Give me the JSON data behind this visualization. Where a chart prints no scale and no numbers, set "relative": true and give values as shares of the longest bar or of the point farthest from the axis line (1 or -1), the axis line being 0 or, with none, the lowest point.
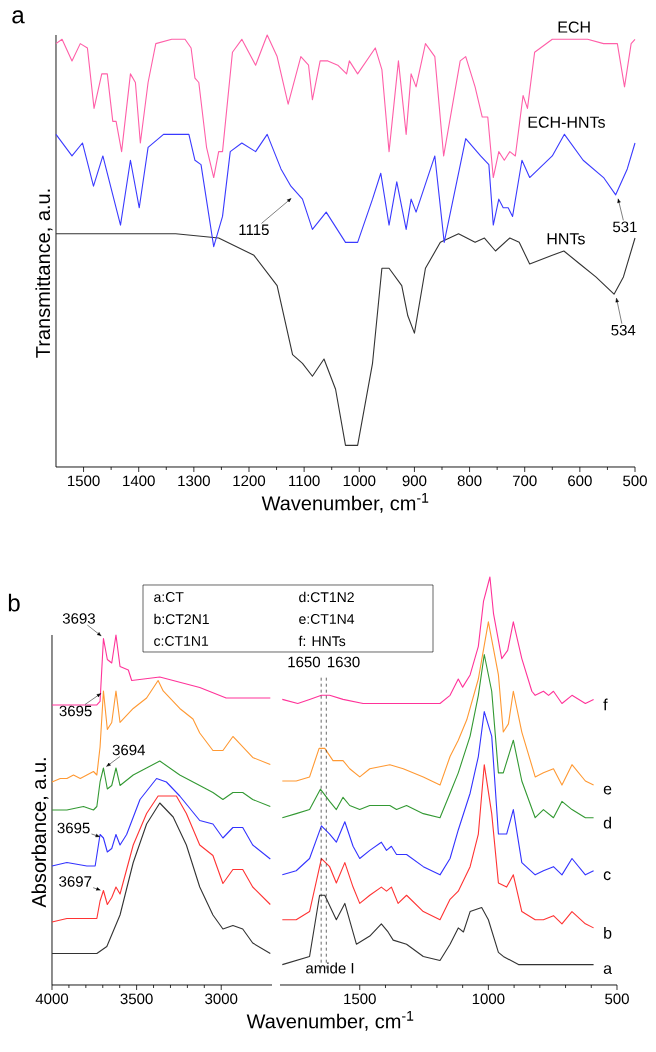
{
  "chart_data": [
    {
      "type": "line",
      "title": "a",
      "xlabel": "Wavenumber, cm$^{-1}$",
      "ylabel": "Transmittance, a.u.",
      "relative": true,
      "xlim": [
        1550,
        500
      ],
      "xticks": [
        1500,
        1400,
        1300,
        1200,
        1100,
        1000,
        900,
        800,
        700,
        600,
        500
      ],
      "series": [
        {
          "name": "ECH",
          "color": "#ff5fa8",
          "x": [
            1550,
            1539,
            1521,
            1506,
            1493,
            1481,
            1467,
            1457,
            1447,
            1441,
            1431,
            1415,
            1406,
            1397,
            1383,
            1369,
            1340,
            1316,
            1305,
            1298,
            1291,
            1277,
            1264,
            1255,
            1248,
            1230,
            1213,
            1188,
            1167,
            1149,
            1129,
            1106,
            1092,
            1085,
            1071,
            1057,
            1039,
            1023,
            1018,
            1003,
            971,
            959,
            946,
            929,
            915,
            906,
            897,
            880,
            863,
            847,
            817,
            807,
            790,
            777,
            767,
            757,
            747,
            737,
            727,
            717,
            703,
            695,
            682,
            650,
            614,
            586,
            557,
            532,
            519,
            507,
            500
          ],
          "values": [
            0.98,
            0.99,
            0.94,
            0.98,
            0.97,
            0.83,
            0.91,
            0.91,
            0.8,
            0.8,
            0.73,
            0.91,
            0.89,
            0.75,
            0.89,
            0.98,
            0.99,
            0.99,
            0.97,
            0.9,
            0.89,
            0.74,
            0.67,
            0.73,
            0.73,
            0.96,
            0.99,
            0.93,
            1.0,
            0.95,
            0.84,
            0.95,
            0.93,
            0.85,
            0.94,
            0.94,
            0.93,
            0.91,
            0.94,
            0.91,
            0.97,
            0.92,
            0.73,
            0.94,
            0.77,
            0.91,
            0.88,
            0.98,
            0.95,
            0.72,
            0.94,
            0.95,
            0.88,
            0.81,
            0.81,
            0.67,
            0.73,
            0.71,
            0.73,
            0.72,
            0.86,
            0.83,
            0.96,
            0.99,
            0.99,
            0.99,
            0.98,
            0.98,
            0.88,
            0.98,
            0.99
          ]
        },
        {
          "name": "ECH-HNTs",
          "color": "#3a3aff",
          "x": [
            1550,
            1521,
            1502,
            1482,
            1465,
            1447,
            1433,
            1415,
            1399,
            1383,
            1355,
            1309,
            1298,
            1287,
            1264,
            1248,
            1234,
            1213,
            1188,
            1167,
            1142,
            1124,
            1103,
            1085,
            1060,
            1025,
            1003,
            976,
            961,
            946,
            932,
            915,
            906,
            897,
            863,
            846,
            807,
            780,
            765,
            757,
            747,
            739,
            730,
            722,
            705,
            691,
            650,
            628,
            594,
            557,
            535,
            514,
            500
          ],
          "values": [
            0.77,
            0.72,
            0.75,
            0.65,
            0.72,
            0.63,
            0.56,
            0.71,
            0.6,
            0.74,
            0.77,
            0.77,
            0.71,
            0.7,
            0.51,
            0.58,
            0.73,
            0.75,
            0.73,
            0.77,
            0.69,
            0.65,
            0.62,
            0.55,
            0.59,
            0.52,
            0.52,
            0.62,
            0.68,
            0.56,
            0.66,
            0.55,
            0.62,
            0.59,
            0.72,
            0.52,
            0.76,
            0.72,
            0.7,
            0.56,
            0.62,
            0.6,
            0.6,
            0.58,
            0.71,
            0.67,
            0.72,
            0.77,
            0.71,
            0.67,
            0.63,
            0.69,
            0.75
          ]
        },
        {
          "name": "HNTs",
          "color": "#333333",
          "x": [
            1550,
            1440,
            1333,
            1255,
            1191,
            1149,
            1121,
            1103,
            1085,
            1064,
            1043,
            1025,
            1003,
            976,
            959,
            946,
            923,
            912,
            900,
            880,
            853,
            820,
            790,
            773,
            753,
            727,
            710,
            691,
            650,
            629,
            600,
            571,
            538,
            521,
            500
          ],
          "values": [
            0.54,
            0.54,
            0.54,
            0.53,
            0.49,
            0.42,
            0.26,
            0.24,
            0.21,
            0.25,
            0.18,
            0.05,
            0.05,
            0.24,
            0.46,
            0.46,
            0.42,
            0.35,
            0.31,
            0.46,
            0.52,
            0.54,
            0.52,
            0.53,
            0.5,
            0.53,
            0.52,
            0.47,
            0.49,
            0.5,
            0.47,
            0.44,
            0.4,
            0.44,
            0.53
          ]
        }
      ],
      "annotations": [
        {
          "text": "1115",
          "x": 1115,
          "y": 0.63
        },
        {
          "text": "531",
          "x": 531,
          "y": 0.63
        },
        {
          "text": "534",
          "x": 534,
          "y": 0.4
        }
      ]
    },
    {
      "type": "line",
      "title": "b",
      "ylabel": "Absorbance, a.u.",
      "relative": true,
      "xlim": [
        4000,
        2700
      ],
      "xticks": [
        4000,
        3500,
        3000
      ],
      "series": [
        {
          "color": "#ff3399",
          "x": [
            4000,
            3735,
            3716,
            3696,
            3673,
            3647,
            3622,
            3598,
            3549,
            3529,
            3363,
            3127,
            2971,
            2931,
            2873,
            2710
          ],
          "values": [
            0.8,
            0.8,
            0.81,
            0.99,
            0.93,
            0.92,
            1.0,
            0.91,
            0.9,
            0.87,
            0.88,
            0.85,
            0.82,
            0.82,
            0.82,
            0.82
          ]
        },
        {
          "color": "#ff9933",
          "x": [
            4000,
            3951,
            3912,
            3873,
            3833,
            3794,
            3755,
            3735,
            3716,
            3696,
            3673,
            3647,
            3622,
            3598,
            3520,
            3441,
            3373,
            3343,
            3245,
            3167,
            3127,
            3049,
            2990,
            2931,
            2892,
            2814,
            2710
          ],
          "values": [
            0.58,
            0.59,
            0.59,
            0.6,
            0.59,
            0.6,
            0.61,
            0.6,
            0.68,
            0.84,
            0.73,
            0.75,
            0.84,
            0.75,
            0.79,
            0.82,
            0.87,
            0.84,
            0.79,
            0.76,
            0.72,
            0.67,
            0.67,
            0.71,
            0.69,
            0.65,
            0.63
          ]
        },
        {
          "color": "#339933",
          "x": [
            4000,
            3912,
            3814,
            3755,
            3735,
            3716,
            3696,
            3673,
            3647,
            3622,
            3598,
            3520,
            3363,
            3245,
            3127,
            3049,
            2990,
            2931,
            2873,
            2814,
            2710
          ],
          "values": [
            0.5,
            0.5,
            0.51,
            0.5,
            0.51,
            0.58,
            0.62,
            0.56,
            0.57,
            0.62,
            0.57,
            0.6,
            0.64,
            0.6,
            0.57,
            0.55,
            0.53,
            0.55,
            0.55,
            0.53,
            0.51
          ]
        },
        {
          "color": "#3333ff",
          "x": [
            4000,
            3912,
            3794,
            3745,
            3716,
            3696,
            3673,
            3647,
            3622,
            3598,
            3559,
            3480,
            3382,
            3324,
            3245,
            3127,
            3049,
            2990,
            2931,
            2873,
            2814,
            2710
          ],
          "values": [
            0.34,
            0.35,
            0.34,
            0.34,
            0.43,
            0.42,
            0.38,
            0.39,
            0.43,
            0.4,
            0.43,
            0.53,
            0.59,
            0.58,
            0.54,
            0.47,
            0.46,
            0.42,
            0.45,
            0.45,
            0.4,
            0.36
          ]
        },
        {
          "color": "#ff3333",
          "x": [
            4000,
            3912,
            3794,
            3735,
            3716,
            3696,
            3673,
            3647,
            3622,
            3598,
            3520,
            3441,
            3373,
            3324,
            3265,
            3206,
            3127,
            3049,
            2990,
            2931,
            2873,
            2814,
            2710
          ],
          "values": [
            0.18,
            0.19,
            0.19,
            0.19,
            0.24,
            0.27,
            0.23,
            0.25,
            0.28,
            0.26,
            0.4,
            0.49,
            0.54,
            0.54,
            0.54,
            0.49,
            0.4,
            0.37,
            0.29,
            0.33,
            0.33,
            0.28,
            0.23
          ]
        },
        {
          "color": "#333333",
          "x": [
            4000,
            3735,
            3676,
            3598,
            3520,
            3441,
            3363,
            3284,
            3206,
            3127,
            3049,
            2990,
            2931,
            2873,
            2814,
            2710
          ],
          "values": [
            0.09,
            0.09,
            0.11,
            0.2,
            0.35,
            0.46,
            0.52,
            0.48,
            0.4,
            0.28,
            0.2,
            0.16,
            0.17,
            0.16,
            0.12,
            0.09
          ]
        }
      ],
      "annotations": [
        {
          "text": "3693",
          "x": 3693,
          "y": 0.99
        },
        {
          "text": "3695",
          "x": 3695,
          "y": 0.84
        },
        {
          "text": "3694",
          "x": 3694,
          "y": 0.62
        },
        {
          "text": "3695",
          "x": 3695,
          "y": 0.42
        },
        {
          "text": "3697",
          "x": 3697,
          "y": 0.27
        }
      ]
    },
    {
      "type": "line",
      "xlabel": "Wavenumber, cm$^{-1}$",
      "relative": true,
      "xlim": [
        1810,
        500
      ],
      "xticks": [
        1500,
        1000,
        500
      ],
      "series": [
        {
          "name": "f",
          "color": "#ff3399",
          "x": [
            1801,
            1741,
            1695,
            1649,
            1617,
            1565,
            1487,
            1331,
            1188,
            1149,
            1117,
            1100,
            1071,
            1039,
            1019,
            994,
            980,
            948,
            925,
            903,
            870,
            831,
            818,
            786,
            766,
            747,
            714,
            675,
            623,
            591
          ],
          "values": [
            0.7,
            0.69,
            0.7,
            0.71,
            0.71,
            0.7,
            0.69,
            0.69,
            0.69,
            0.71,
            0.75,
            0.73,
            0.76,
            0.83,
            0.94,
            1.0,
            0.91,
            0.8,
            0.82,
            0.89,
            0.8,
            0.72,
            0.71,
            0.72,
            0.71,
            0.72,
            0.69,
            0.71,
            0.69,
            0.7
          ]
        },
        {
          "name": "e",
          "color": "#ff9933",
          "x": [
            1801,
            1747,
            1695,
            1658,
            1636,
            1604,
            1565,
            1539,
            1500,
            1461,
            1383,
            1331,
            1253,
            1188,
            1149,
            1117,
            1084,
            1039,
            1000,
            961,
            942,
            922,
            903,
            870,
            818,
            786,
            747,
            714,
            675,
            623,
            591
          ],
          "values": [
            0.5,
            0.5,
            0.51,
            0.58,
            0.58,
            0.55,
            0.55,
            0.53,
            0.51,
            0.53,
            0.54,
            0.53,
            0.51,
            0.49,
            0.56,
            0.6,
            0.65,
            0.75,
            0.89,
            0.76,
            0.62,
            0.64,
            0.72,
            0.62,
            0.51,
            0.52,
            0.53,
            0.49,
            0.54,
            0.5,
            0.49
          ]
        },
        {
          "name": "d",
          "color": "#339933",
          "x": [
            1801,
            1747,
            1695,
            1653,
            1617,
            1591,
            1565,
            1539,
            1500,
            1461,
            1383,
            1357,
            1318,
            1253,
            1188,
            1149,
            1117,
            1071,
            1039,
            1016,
            987,
            961,
            942,
            903,
            870,
            818,
            786,
            747,
            714,
            675,
            623,
            591
          ],
          "values": [
            0.41,
            0.42,
            0.43,
            0.48,
            0.45,
            0.43,
            0.46,
            0.44,
            0.43,
            0.44,
            0.44,
            0.43,
            0.44,
            0.42,
            0.41,
            0.47,
            0.52,
            0.61,
            0.71,
            0.81,
            0.72,
            0.52,
            0.52,
            0.6,
            0.5,
            0.41,
            0.43,
            0.41,
            0.45,
            0.43,
            0.41,
            0.41
          ]
        },
        {
          "name": "c",
          "color": "#3333ff",
          "x": [
            1801,
            1747,
            1695,
            1649,
            1617,
            1591,
            1558,
            1526,
            1500,
            1461,
            1416,
            1396,
            1377,
            1357,
            1318,
            1253,
            1188,
            1149,
            1117,
            1071,
            1039,
            1016,
            987,
            961,
            929,
            903,
            870,
            818,
            786,
            747,
            714,
            675,
            623,
            591
          ],
          "values": [
            0.27,
            0.28,
            0.31,
            0.39,
            0.37,
            0.35,
            0.4,
            0.34,
            0.31,
            0.33,
            0.35,
            0.33,
            0.34,
            0.32,
            0.32,
            0.29,
            0.27,
            0.31,
            0.38,
            0.47,
            0.56,
            0.67,
            0.61,
            0.37,
            0.37,
            0.43,
            0.3,
            0.27,
            0.28,
            0.29,
            0.27,
            0.31,
            0.27,
            0.28
          ]
        },
        {
          "name": "b",
          "color": "#ff3333",
          "x": [
            1801,
            1747,
            1695,
            1649,
            1617,
            1591,
            1558,
            1526,
            1500,
            1461,
            1416,
            1396,
            1377,
            1351,
            1318,
            1253,
            1188,
            1149,
            1117,
            1071,
            1039,
            1016,
            987,
            961,
            929,
            903,
            870,
            818,
            786,
            747,
            714,
            675,
            623,
            591
          ],
          "values": [
            0.16,
            0.16,
            0.18,
            0.31,
            0.29,
            0.25,
            0.3,
            0.24,
            0.2,
            0.22,
            0.24,
            0.23,
            0.24,
            0.2,
            0.22,
            0.18,
            0.16,
            0.21,
            0.23,
            0.29,
            0.37,
            0.54,
            0.42,
            0.25,
            0.24,
            0.27,
            0.18,
            0.16,
            0.16,
            0.17,
            0.15,
            0.18,
            0.15,
            0.14
          ]
        },
        {
          "name": "a",
          "color": "#333333",
          "x": [
            1801,
            1695,
            1656,
            1636,
            1591,
            1558,
            1513,
            1461,
            1416,
            1390,
            1370,
            1318,
            1253,
            1188,
            1149,
            1117,
            1097,
            1071,
            1026,
            1000,
            961,
            942,
            883,
            591
          ],
          "values": [
            0.05,
            0.07,
            0.22,
            0.22,
            0.16,
            0.2,
            0.1,
            0.12,
            0.15,
            0.13,
            0.11,
            0.1,
            0.07,
            0.06,
            0.1,
            0.14,
            0.13,
            0.18,
            0.19,
            0.16,
            0.08,
            0.07,
            0.05,
            0.05
          ]
        }
      ],
      "ref_lines": [
        {
          "axis": "x",
          "value": 1650,
          "label": "1650",
          "line_style": "dashed"
        },
        {
          "axis": "x",
          "value": 1630,
          "label": "1630",
          "line_style": "dashed"
        }
      ],
      "annotations": [
        "a:CT",
        "b:CT2N1",
        "c:CT1N1",
        "d:CT1N2",
        "e:CT1N4",
        "f: HNTs",
        "amide I"
      ]
    }
  ]
}
